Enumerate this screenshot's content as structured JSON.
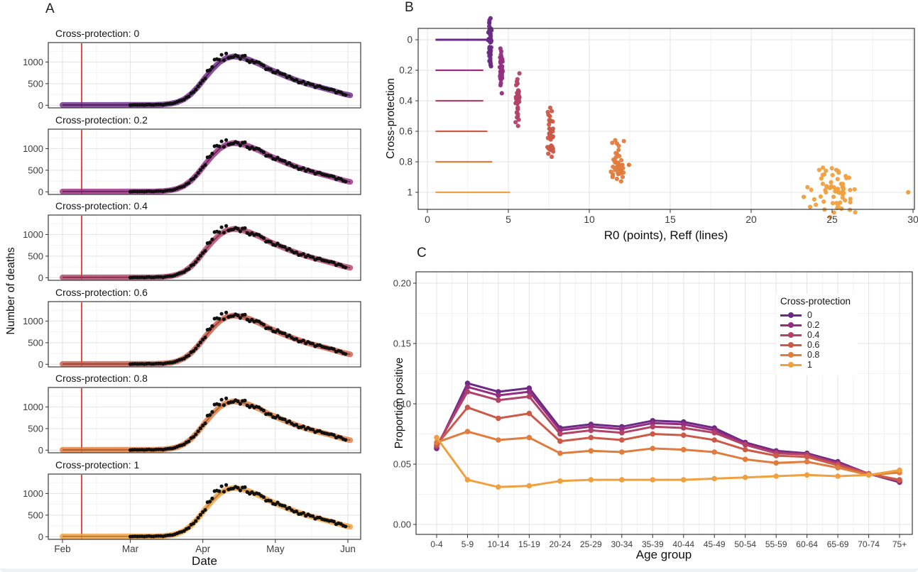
{
  "figure": {
    "background": "#ffffff",
    "description": "Three-panel epidemiological model figure: fitted death curves by cross-protection level, R0/Reff estimates, and proportion seropositive by age group"
  },
  "palette": {
    "cross_protection_colors": [
      "#6a2a85",
      "#952e80",
      "#b24368",
      "#cb5a49",
      "#e07c3d",
      "#f0a03e"
    ],
    "observed_point_color": "#101010",
    "intervention_line_color": "#e8392b",
    "grid_major": "#e3e3e3",
    "grid_minor": "#f2f2f2",
    "panel_border": "#3a3a3a",
    "tick_text": "#3d3d3d"
  },
  "chart_data": [
    {
      "id": "panel-a",
      "panel_label": "A",
      "type": "line",
      "xlabel": "Date",
      "ylabel": "Number of deaths",
      "x_tick_labels": [
        "Feb",
        "Mar",
        "Apr",
        "May",
        "Jun"
      ],
      "x_tick_days": [
        0,
        29,
        60,
        91,
        122
      ],
      "y_ticks": [
        0,
        500,
        1000
      ],
      "ylim": [
        0,
        1400
      ],
      "intervention_day": 8.2,
      "intervention_note": "red vertical line ~9 Feb",
      "facets": [
        {
          "title": "Cross-protection: 0",
          "level": 0,
          "color": "#6a2a85"
        },
        {
          "title": "Cross-protection: 0.2",
          "level": 0.2,
          "color": "#952e80"
        },
        {
          "title": "Cross-protection: 0.4",
          "level": 0.4,
          "color": "#b24368"
        },
        {
          "title": "Cross-protection: 0.6",
          "level": 0.6,
          "color": "#cb5a49"
        },
        {
          "title": "Cross-protection: 0.8",
          "level": 0.8,
          "color": "#e07c3d"
        },
        {
          "title": "Cross-protection: 1",
          "level": 1,
          "color": "#f0a03e"
        }
      ],
      "model_curve": {
        "days_from_feb1": [
          0,
          10,
          20,
          29,
          35,
          40,
          43,
          46,
          49,
          52,
          55,
          58,
          61,
          64,
          67,
          70,
          73,
          76,
          80,
          84,
          88,
          92,
          96,
          100,
          104,
          108,
          112,
          116,
          120,
          123
        ],
        "deaths": [
          8,
          8,
          8,
          9,
          10,
          13,
          18,
          35,
          70,
          140,
          260,
          430,
          640,
          830,
          990,
          1090,
          1130,
          1110,
          1050,
          960,
          845,
          750,
          660,
          580,
          505,
          445,
          390,
          330,
          265,
          230
        ]
      },
      "observed_points": {
        "start_day": 29,
        "end_day": 121,
        "description": "daily observed deaths (black points) Mar-Jun tracking the model band, peak points ~1300 in early April"
      }
    },
    {
      "id": "panel-b",
      "panel_label": "B",
      "type": "scatter",
      "xlabel": "R0 (points), Reff (lines)",
      "ylabel": "Cross-protection",
      "x_ticks": [
        0,
        5,
        10,
        15,
        20,
        25,
        30
      ],
      "y_ticks": [
        0,
        0.2,
        0.4,
        0.6,
        0.8,
        1
      ],
      "xlim": [
        0,
        30.5
      ],
      "levels": [
        {
          "cross_protection": 0,
          "color": "#6a2a85",
          "reff_line": [
            0.5,
            3.7
          ],
          "r0_cluster": {
            "center": 3.85,
            "x_spread": 0.07,
            "y_spread": 0.1,
            "n": 45
          },
          "outliers": []
        },
        {
          "cross_protection": 0.2,
          "color": "#952e80",
          "reff_line": [
            0.5,
            3.45
          ],
          "r0_cluster": {
            "center": 4.55,
            "x_spread": 0.07,
            "y_spread": 0.1,
            "n": 40
          },
          "outliers": []
        },
        {
          "cross_protection": 0.4,
          "color": "#b24368",
          "reff_line": [
            0.5,
            3.45
          ],
          "r0_cluster": {
            "center": 5.6,
            "x_spread": 0.1,
            "y_spread": 0.11,
            "n": 40
          },
          "outliers": []
        },
        {
          "cross_protection": 0.6,
          "color": "#cb5a49",
          "reff_line": [
            0.5,
            3.7
          ],
          "r0_cluster": {
            "center": 7.6,
            "x_spread": 0.12,
            "y_spread": 0.11,
            "n": 40
          },
          "outliers": []
        },
        {
          "cross_protection": 0.8,
          "color": "#e07c3d",
          "reff_line": [
            0.5,
            4.0
          ],
          "r0_cluster": {
            "center": 11.75,
            "x_spread": 0.3,
            "y_spread": 0.09,
            "n": 42
          },
          "outliers": [
            [
              12.45,
              0.82
            ]
          ]
        },
        {
          "cross_protection": 1,
          "color": "#f0a03e",
          "reff_line": [
            0.5,
            5.1
          ],
          "r0_cluster": {
            "center": 25.1,
            "x_spread": 1.05,
            "y_spread": 0.11,
            "n": 65
          },
          "outliers": [
            [
              29.7,
              1.0
            ],
            [
              23.25,
              1.03
            ]
          ]
        }
      ]
    },
    {
      "id": "panel-c",
      "panel_label": "C",
      "type": "line",
      "xlabel": "Age group",
      "ylabel": "Proportion positive",
      "categories": [
        "0-4",
        "5-9",
        "10-14",
        "15-19",
        "20-24",
        "25-29",
        "30-34",
        "35-39",
        "40-44",
        "45-49",
        "50-54",
        "55-59",
        "60-64",
        "65-69",
        "70-74",
        "75+"
      ],
      "y_ticks": [
        "0.00",
        "0.05",
        "0.10",
        "0.15",
        "0.20"
      ],
      "y_tick_values": [
        0,
        0.05,
        0.1,
        0.15,
        0.2
      ],
      "ylim": [
        0,
        0.21
      ],
      "legend_title": "Cross-protection",
      "series": [
        {
          "name": "0",
          "color": "#6a2a85",
          "values": [
            0.063,
            0.117,
            0.11,
            0.113,
            0.08,
            0.083,
            0.081,
            0.086,
            0.085,
            0.08,
            0.068,
            0.061,
            0.059,
            0.052,
            0.042,
            0.035
          ]
        },
        {
          "name": "0.2",
          "color": "#952e80",
          "values": [
            0.064,
            0.114,
            0.107,
            0.11,
            0.078,
            0.081,
            0.079,
            0.084,
            0.083,
            0.078,
            0.067,
            0.06,
            0.058,
            0.051,
            0.042,
            0.036
          ]
        },
        {
          "name": "0.4",
          "color": "#b24368",
          "values": [
            0.065,
            0.11,
            0.103,
            0.106,
            0.075,
            0.078,
            0.076,
            0.081,
            0.08,
            0.076,
            0.066,
            0.059,
            0.058,
            0.05,
            0.042,
            0.036
          ]
        },
        {
          "name": "0.6",
          "color": "#cb5a49",
          "values": [
            0.066,
            0.097,
            0.088,
            0.092,
            0.069,
            0.072,
            0.07,
            0.075,
            0.074,
            0.07,
            0.062,
            0.057,
            0.056,
            0.049,
            0.042,
            0.037
          ]
        },
        {
          "name": "0.8",
          "color": "#e07c3d",
          "values": [
            0.068,
            0.077,
            0.07,
            0.072,
            0.059,
            0.061,
            0.06,
            0.063,
            0.062,
            0.06,
            0.054,
            0.051,
            0.052,
            0.047,
            0.041,
            0.043
          ]
        },
        {
          "name": "1",
          "color": "#f0a03e",
          "values": [
            0.072,
            0.037,
            0.031,
            0.032,
            0.036,
            0.037,
            0.037,
            0.037,
            0.037,
            0.038,
            0.039,
            0.04,
            0.041,
            0.04,
            0.041,
            0.045
          ]
        }
      ]
    }
  ]
}
